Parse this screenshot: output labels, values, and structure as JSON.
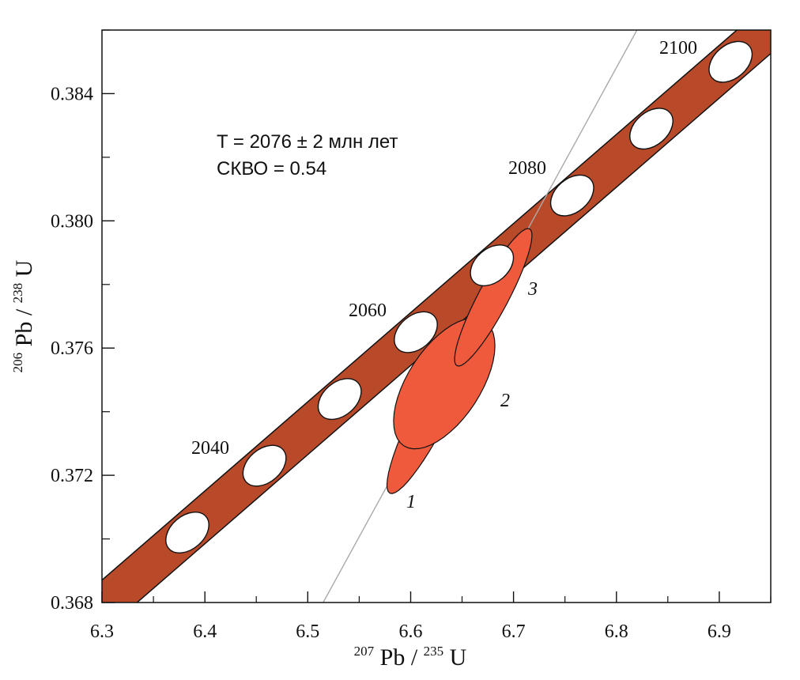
{
  "chart_data": {
    "type": "scatter",
    "subtype": "U-Pb concordia diagram",
    "xlabel": {
      "super_mass": "207",
      "element": "Pb",
      "separator": "/",
      "super_mass2": "235",
      "element2": "U"
    },
    "ylabel": {
      "super_mass": "206",
      "element": "Pb",
      "separator": "/",
      "super_mass2": "238",
      "element2": "U"
    },
    "xlim": [
      6.3,
      6.95
    ],
    "ylim": [
      0.368,
      0.386
    ],
    "x_major_ticks": [
      6.3,
      6.4,
      6.5,
      6.6,
      6.7,
      6.8,
      6.9
    ],
    "x_minor_step": 0.05,
    "y_major_ticks": [
      0.368,
      0.372,
      0.376,
      0.38,
      0.384
    ],
    "y_minor_step": 0.002,
    "x_tick_labels": [
      "6.3",
      "6.4",
      "6.5",
      "6.6",
      "6.7",
      "6.8",
      "6.9"
    ],
    "y_tick_labels": [
      "0.368",
      "0.372",
      "0.376",
      "0.380",
      "0.384"
    ],
    "grid": false,
    "concordia": {
      "color": "#b84a2a",
      "age_markers": [
        {
          "age": 2030,
          "x": 6.383,
          "y": 0.3702,
          "label": ""
        },
        {
          "age": 2040,
          "x": 6.458,
          "y": 0.3723,
          "label": "2040"
        },
        {
          "age": 2050,
          "x": 6.531,
          "y": 0.3744,
          "label": ""
        },
        {
          "age": 2060,
          "x": 6.605,
          "y": 0.3765,
          "label": "2060"
        },
        {
          "age": 2070,
          "x": 6.679,
          "y": 0.3786,
          "label": ""
        },
        {
          "age": 2080,
          "x": 6.757,
          "y": 0.3808,
          "label": "2080"
        },
        {
          "age": 2090,
          "x": 6.834,
          "y": 0.3829,
          "label": ""
        },
        {
          "age": 2100,
          "x": 6.911,
          "y": 0.385,
          "label": "2100"
        }
      ]
    },
    "discordia_line": {
      "x": [
        6.515,
        6.82
      ],
      "y": [
        0.368,
        0.386
      ],
      "color": "#aaaaaa"
    },
    "analyses": [
      {
        "label": "1",
        "center_x": 6.626,
        "center_y": 0.3733,
        "color": "#ef5a3c"
      },
      {
        "label": "2",
        "center_x": 6.629,
        "center_y": 0.3744,
        "color": "#ef5a3c"
      },
      {
        "label": "3",
        "center_x": 6.665,
        "center_y": 0.3768,
        "color": "#ef5a3c"
      }
    ],
    "annotation": {
      "line1": "T = 2076 ± 2 млн лет",
      "line2": "СКВО = 0.54"
    }
  }
}
